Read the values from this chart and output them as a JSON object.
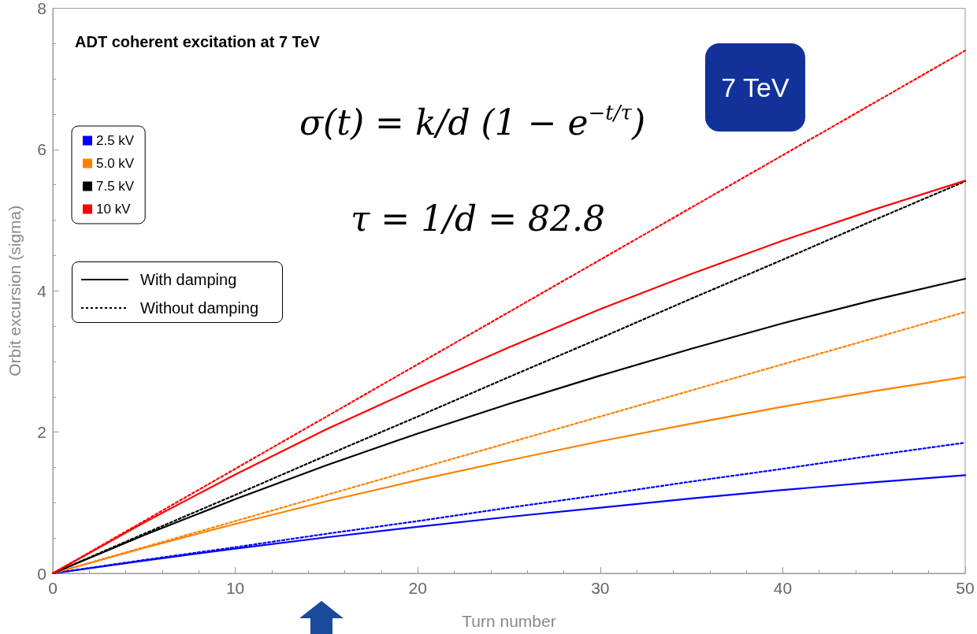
{
  "chart_data": {
    "type": "line",
    "title": "ADT coherent excitation at 7 TeV",
    "xlabel": "Turn number",
    "ylabel": "Orbit excursion (sigma)",
    "x": [
      0,
      5,
      10,
      15,
      20,
      25,
      30,
      35,
      40,
      45,
      50
    ],
    "series": [
      {
        "name": "2.5 kV",
        "color": "#0000ff",
        "line_style": "solid",
        "values": [
          0,
          0.18,
          0.35,
          0.51,
          0.66,
          0.8,
          0.93,
          1.06,
          1.18,
          1.29,
          1.39
        ]
      },
      {
        "name": "5.0 kV",
        "color": "#ff8000",
        "line_style": "solid",
        "values": [
          0,
          0.36,
          0.7,
          1.02,
          1.32,
          1.6,
          1.87,
          2.12,
          2.36,
          2.58,
          2.78
        ]
      },
      {
        "name": "7.5 kV",
        "color": "#000000",
        "line_style": "solid",
        "values": [
          0,
          0.54,
          1.05,
          1.53,
          1.98,
          2.4,
          2.8,
          3.18,
          3.54,
          3.87,
          4.17
        ]
      },
      {
        "name": "10 kV",
        "color": "#ff0000",
        "line_style": "solid",
        "values": [
          0,
          0.72,
          1.4,
          2.04,
          2.63,
          3.2,
          3.74,
          4.24,
          4.71,
          5.15,
          5.56
        ]
      },
      {
        "color": "#0000ff",
        "line_style": "dotted",
        "values": [
          0,
          0.19,
          0.37,
          0.56,
          0.74,
          0.93,
          1.11,
          1.3,
          1.48,
          1.67,
          1.85
        ]
      },
      {
        "color": "#ff8000",
        "line_style": "dotted",
        "values": [
          0,
          0.37,
          0.74,
          1.11,
          1.48,
          1.85,
          2.22,
          2.59,
          2.96,
          3.33,
          3.7
        ]
      },
      {
        "color": "#000000",
        "line_style": "dotted",
        "values": [
          0,
          0.56,
          1.11,
          1.67,
          2.22,
          2.78,
          3.33,
          3.89,
          4.44,
          5.0,
          5.55
        ]
      },
      {
        "color": "#ff0000",
        "line_style": "dotted",
        "values": [
          0,
          0.74,
          1.48,
          2.22,
          2.96,
          3.7,
          4.44,
          5.18,
          5.92,
          6.66,
          7.4
        ]
      }
    ],
    "xlim": [
      0,
      50
    ],
    "xticks": [
      0,
      10,
      20,
      30,
      40,
      50
    ],
    "ylim": [
      0,
      8
    ],
    "yticks": [
      0,
      2,
      4,
      6,
      8
    ],
    "grid": false,
    "legend": "top left",
    "marker": "none",
    "annotations": [
      "σ(t) = k/d (1 − e$^{−t/τ}$)",
      "τ = 1/d = 82.8",
      "7 TeV",
      "With damping",
      "Without damping"
    ]
  }
}
